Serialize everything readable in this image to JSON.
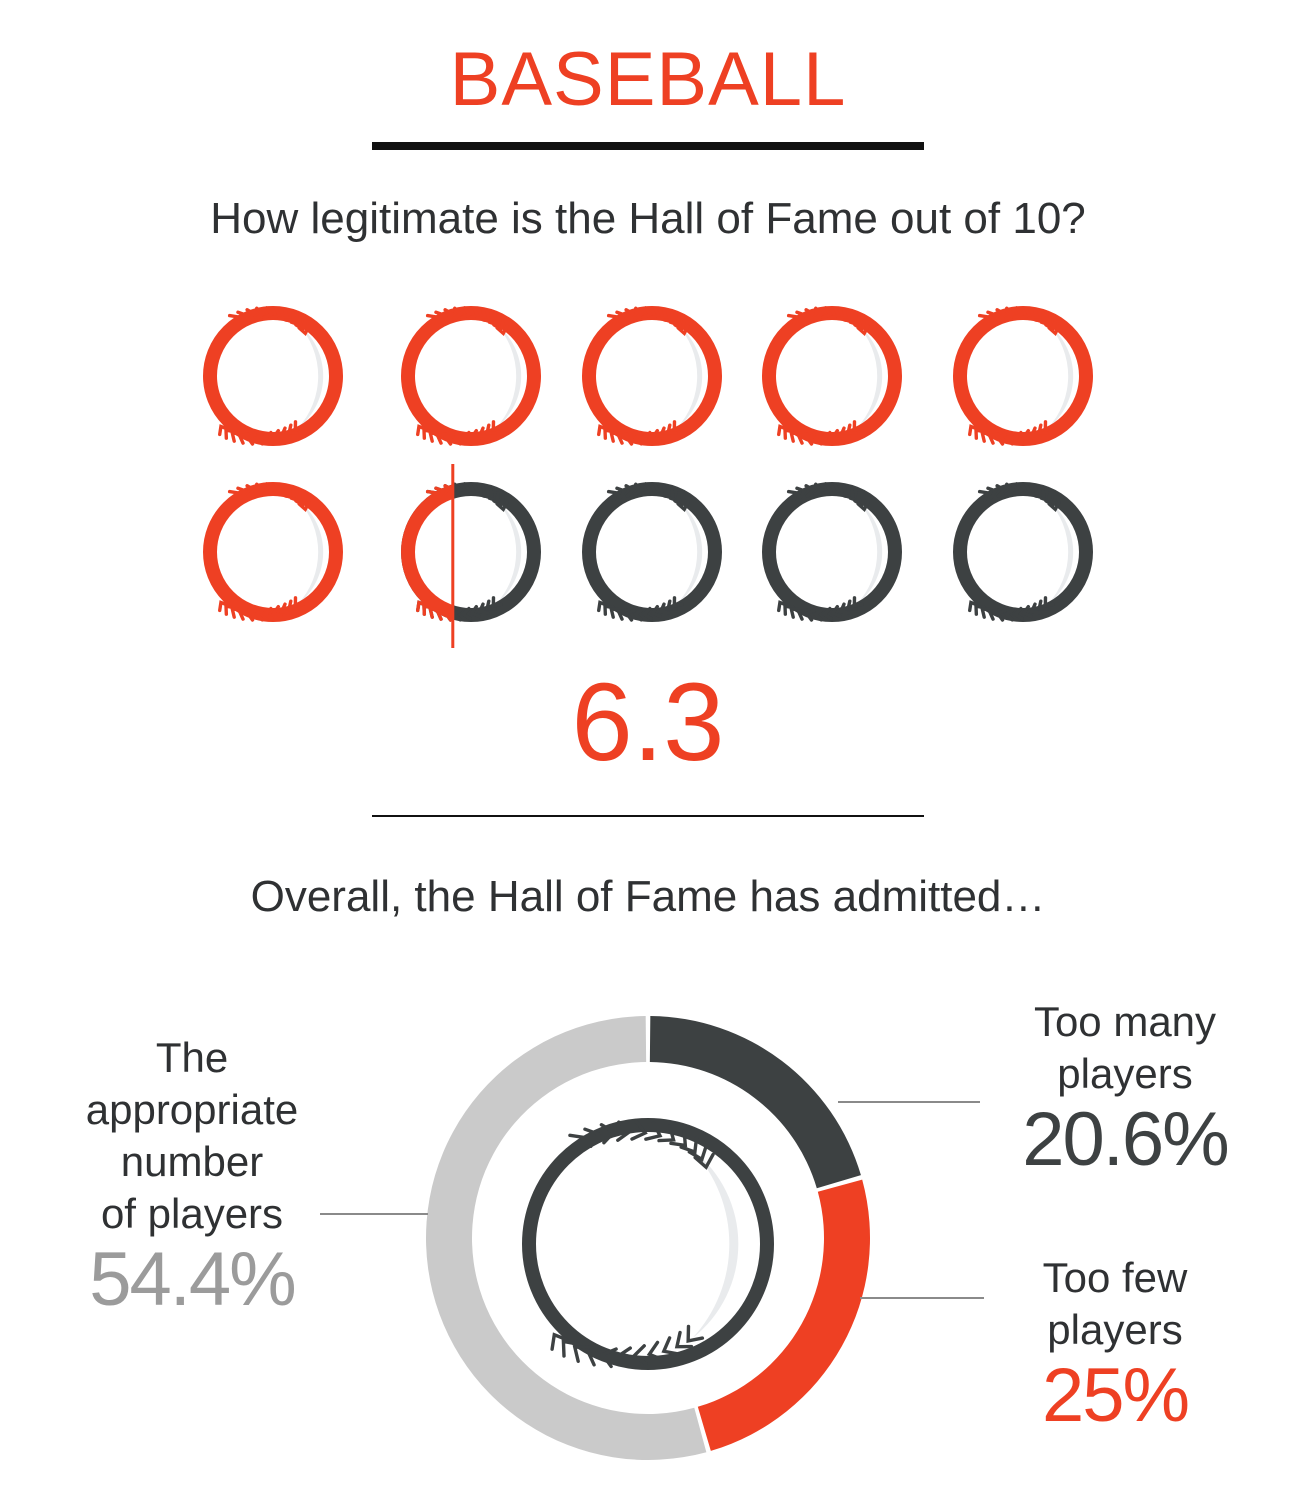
{
  "colors": {
    "accent": "#ee4023",
    "dark": "#3d4142",
    "light_gray": "#cacaca",
    "ball_fill": "#e9ebed"
  },
  "header": {
    "title": "BASEBALL"
  },
  "question1": "How legitimate is the Hall of Fame out of 10?",
  "score": {
    "value": 6.3,
    "display": "6.3",
    "max": 10
  },
  "question2": "Overall, the Hall of Fame has admitted…",
  "labels": {
    "appropriate": {
      "text": [
        "The",
        "appropriate",
        "number",
        "of players"
      ],
      "pct": "54.4%"
    },
    "too_many": {
      "text": [
        "Too many",
        "players"
      ],
      "pct": "20.6%"
    },
    "too_few": {
      "text": [
        "Too few",
        "players"
      ],
      "pct": "25%"
    }
  },
  "chart_data": [
    {
      "type": "icon-rating",
      "max": 10,
      "value": 6.3,
      "label": "6.3"
    },
    {
      "type": "pie",
      "variant": "donut",
      "categories": [
        "Too many players",
        "Too few players",
        "The appropriate number of players"
      ],
      "values": [
        20.6,
        25,
        54.4
      ],
      "colors": [
        "#3d4142",
        "#ee4023",
        "#cacaca"
      ]
    }
  ]
}
